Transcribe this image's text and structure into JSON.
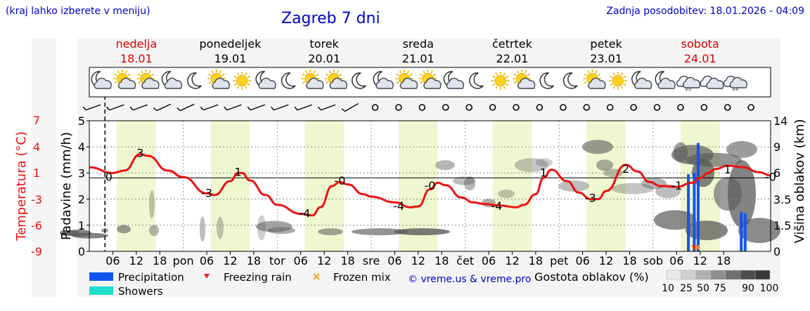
{
  "header": {
    "hint": "(kraj lahko izberete v meniju)",
    "title": "Zagreb 7 dni",
    "updated": "Zadnja posodobitev: 18.01.2026 - 04:09"
  },
  "colors": {
    "temperature": "#ee1111",
    "weekend": "#dd0000",
    "label_blue": "#0000cc",
    "precipitation": "#1155ee",
    "showers": "#22ddcc",
    "freezing_rain": "#ee2222",
    "frozen_mix": "#eeaa22",
    "daylight_band": "#eef7d0"
  },
  "chart_data": {
    "type": "line",
    "title": "Zagreb 7 dni",
    "days": [
      {
        "name": "nedelja",
        "date": "18.01",
        "weekend": true
      },
      {
        "name": "ponedeljek",
        "date": "19.01",
        "weekend": false
      },
      {
        "name": "torek",
        "date": "20.01",
        "weekend": false
      },
      {
        "name": "sreda",
        "date": "21.01",
        "weekend": false
      },
      {
        "name": "četrtek",
        "date": "22.01",
        "weekend": false
      },
      {
        "name": "petek",
        "date": "23.01",
        "weekend": false
      },
      {
        "name": "sobota",
        "date": "24.01",
        "weekend": true
      }
    ],
    "hour_ticks": [
      "06",
      "12",
      "18"
    ],
    "day_abbr": [
      "pon",
      "tor",
      "sre",
      "čet",
      "pet",
      "sob"
    ],
    "temperature": {
      "axis_label": "Temperatura (°C)",
      "ticks": [
        7,
        4,
        1,
        -3,
        -6,
        -9
      ],
      "range": [
        -9,
        7
      ],
      "points": [
        [
          0,
          1.3
        ],
        [
          6,
          0.6
        ],
        [
          9,
          0.9
        ],
        [
          13,
          2.9
        ],
        [
          15,
          2.7
        ],
        [
          20,
          0.9
        ],
        [
          24,
          0.1
        ],
        [
          30,
          -1.9
        ],
        [
          32,
          -2.1
        ],
        [
          36,
          -0.4
        ],
        [
          38,
          0.6
        ],
        [
          39,
          0.6
        ],
        [
          41,
          -0.3
        ],
        [
          45,
          -2.1
        ],
        [
          48,
          -3.3
        ],
        [
          54,
          -4.4
        ],
        [
          57,
          -4.6
        ],
        [
          59,
          -3.6
        ],
        [
          62,
          -1.0
        ],
        [
          64,
          -0.5
        ],
        [
          66,
          -0.8
        ],
        [
          70,
          -2.0
        ],
        [
          72,
          -2.3
        ],
        [
          78,
          -3.0
        ],
        [
          82,
          -3.6
        ],
        [
          84,
          -3.5
        ],
        [
          87,
          -1.4
        ],
        [
          89,
          -0.6
        ],
        [
          91,
          -0.9
        ],
        [
          95,
          -2.4
        ],
        [
          98,
          -3.0
        ],
        [
          101,
          -3.2
        ],
        [
          105,
          -3.4
        ],
        [
          109,
          -3.6
        ],
        [
          111,
          -3.3
        ],
        [
          114,
          -2.0
        ],
        [
          116,
          0.0
        ],
        [
          118,
          1.0
        ],
        [
          122,
          -0.4
        ],
        [
          125,
          -1.8
        ],
        [
          128,
          -2.6
        ],
        [
          130,
          -2.6
        ],
        [
          132,
          -1.6
        ],
        [
          137,
          1.6
        ],
        [
          140,
          0.8
        ],
        [
          143,
          -0.5
        ],
        [
          146,
          -1.0
        ],
        [
          150,
          -1.1
        ],
        [
          154,
          -0.6
        ],
        [
          156,
          0.0
        ],
        [
          158,
          0.6
        ],
        [
          160,
          1.1
        ],
        [
          163,
          1.5
        ],
        [
          167,
          1.3
        ],
        [
          171,
          0.7
        ],
        [
          174,
          0.3
        ]
      ],
      "labels": [
        {
          "text": "3",
          "t": 13,
          "v": 2.9
        },
        {
          "text": "0",
          "t": 5,
          "v": 0.0
        },
        {
          "text": "-3",
          "t": 30,
          "v": -2.0
        },
        {
          "text": "1",
          "t": 38,
          "v": 0.6
        },
        {
          "text": "-4",
          "t": 55,
          "v": -4.5
        },
        {
          "text": "-0",
          "t": 64,
          "v": -0.5
        },
        {
          "text": "-4",
          "t": 79,
          "v": -3.6
        },
        {
          "text": "-0",
          "t": 87,
          "v": -1.1
        },
        {
          "text": "-4",
          "t": 104,
          "v": -3.6
        },
        {
          "text": "1",
          "t": 116,
          "v": 0.5
        },
        {
          "text": "-3",
          "t": 128,
          "v": -2.6
        },
        {
          "text": "2",
          "t": 137,
          "v": 1.0
        },
        {
          "text": "-1",
          "t": 150,
          "v": -1.1
        },
        {
          "text": "1",
          "t": 163,
          "v": 0.9
        },
        {
          "text": "-0",
          "t": 174,
          "v": 0.0
        }
      ]
    },
    "precipitation": {
      "axis_label": "Padavine (mm/h)",
      "ticks": [
        0,
        1,
        2,
        3,
        4,
        5
      ],
      "range": [
        0,
        5
      ],
      "bars": [
        [
          153,
          2.95,
          "rain"
        ],
        [
          154.5,
          3.0,
          "rain"
        ],
        [
          155.5,
          4.15,
          "rain"
        ],
        [
          166.5,
          1.5,
          "rain"
        ],
        [
          167.5,
          1.45,
          "rain"
        ]
      ],
      "freezing_rain": [
        [
          154.5,
          0.15
        ]
      ],
      "frozen_mix": [
        [
          155.3,
          0.15
        ]
      ]
    },
    "cloud_height": {
      "axis_label": "Višina oblakov (km)",
      "ticks": [
        0,
        1.5,
        3.5,
        6.0,
        9.0,
        14
      ],
      "blobs": [
        [
          90,
          0.7,
          5,
          5,
          0.35
        ],
        [
          99,
          0.7,
          14,
          4,
          0.75
        ],
        [
          112,
          0.7,
          18,
          5,
          0.75
        ],
        [
          128,
          0.6,
          26,
          4,
          0.75
        ],
        [
          149,
          0.8,
          5,
          3,
          0.6
        ],
        [
          176,
          0.85,
          10,
          6,
          0.6
        ],
        [
          219,
          0.8,
          7,
          8,
          0.45
        ],
        [
          216,
          1.8,
          4,
          20,
          0.35
        ],
        [
          288,
          0.85,
          4,
          18,
          0.4
        ],
        [
          313,
          0.9,
          5,
          16,
          0.35
        ],
        [
          372,
          0.9,
          6,
          18,
          0.3
        ],
        [
          390,
          0.95,
          26,
          8,
          0.55
        ],
        [
          400,
          0.8,
          20,
          5,
          0.5
        ],
        [
          470,
          0.75,
          18,
          5,
          0.55
        ],
        [
          540,
          0.75,
          40,
          5,
          0.65
        ],
        [
          600,
          0.75,
          40,
          5,
          0.8
        ],
        [
          633,
          3.3,
          14,
          7,
          0.45
        ],
        [
          660,
          2.7,
          16,
          6,
          0.4
        ],
        [
          668,
          2.6,
          8,
          10,
          0.45
        ],
        [
          695,
          1.85,
          10,
          6,
          0.5
        ],
        [
          720,
          2.2,
          12,
          6,
          0.35
        ],
        [
          756,
          3.3,
          24,
          10,
          0.35
        ],
        [
          774,
          3.4,
          12,
          6,
          0.3
        ],
        [
          816,
          2.5,
          22,
          8,
          0.4
        ],
        [
          850,
          4.0,
          22,
          10,
          0.6
        ],
        [
          860,
          3.3,
          12,
          8,
          0.5
        ],
        [
          872,
          3.0,
          14,
          6,
          0.4
        ],
        [
          900,
          2.4,
          30,
          8,
          0.35
        ],
        [
          930,
          2.6,
          18,
          8,
          0.45
        ],
        [
          950,
          2.3,
          18,
          10,
          0.4
        ],
        [
          968,
          3.8,
          10,
          14,
          0.6
        ],
        [
          985,
          3.7,
          30,
          14,
          0.7
        ],
        [
          1000,
          3.0,
          16,
          20,
          0.75
        ],
        [
          1015,
          3.5,
          40,
          10,
          0.65
        ],
        [
          1035,
          2.2,
          20,
          24,
          0.6
        ],
        [
          1055,
          2.2,
          20,
          48,
          0.75
        ],
        [
          1055,
          3.9,
          22,
          12,
          0.6
        ],
        [
          1080,
          0.8,
          30,
          18,
          0.7
        ],
        [
          960,
          1.2,
          30,
          14,
          0.7
        ],
        [
          1005,
          0.8,
          30,
          14,
          0.75
        ]
      ]
    },
    "symbols": [
      "moon-cloud",
      "sun-cloud",
      "sun-cloud",
      "moon-cloud",
      "moon",
      "sun-cloud",
      "sun",
      "moon-cloud",
      "moon",
      "sun-cloud",
      "sun-cloud",
      "moon",
      "moon-cloud",
      "sun-cloud",
      "sun-cloud",
      "moon-cloud",
      "moon",
      "sun",
      "sun-cloud",
      "moon",
      "moon",
      "sun-cloud",
      "sun",
      "moon-cloud",
      "moon-cloud",
      "cloud-snow",
      "clouds",
      "cloud-snow"
    ],
    "wind": {
      "directions": [
        250,
        250,
        250,
        245,
        245,
        250,
        250,
        250,
        250,
        250,
        250,
        240,
        240,
        240,
        240,
        235,
        235,
        230,
        205,
        205,
        210,
        215,
        215,
        220,
        210,
        210,
        205,
        200,
        195
      ],
      "calm_from_t": 72
    },
    "legend": {
      "precipitation": "Precipitation",
      "showers": "Showers",
      "freezing_rain": "Freezing rain",
      "frozen_mix": "Frozen mix",
      "credit": "© vreme.us & vreme.pro",
      "cloud_density_label": "Gostota oblakov (%)",
      "cloud_density_ticks": [
        "10",
        "25",
        "50",
        "75",
        "90",
        "100"
      ]
    },
    "current_time_marker_t": 4
  }
}
